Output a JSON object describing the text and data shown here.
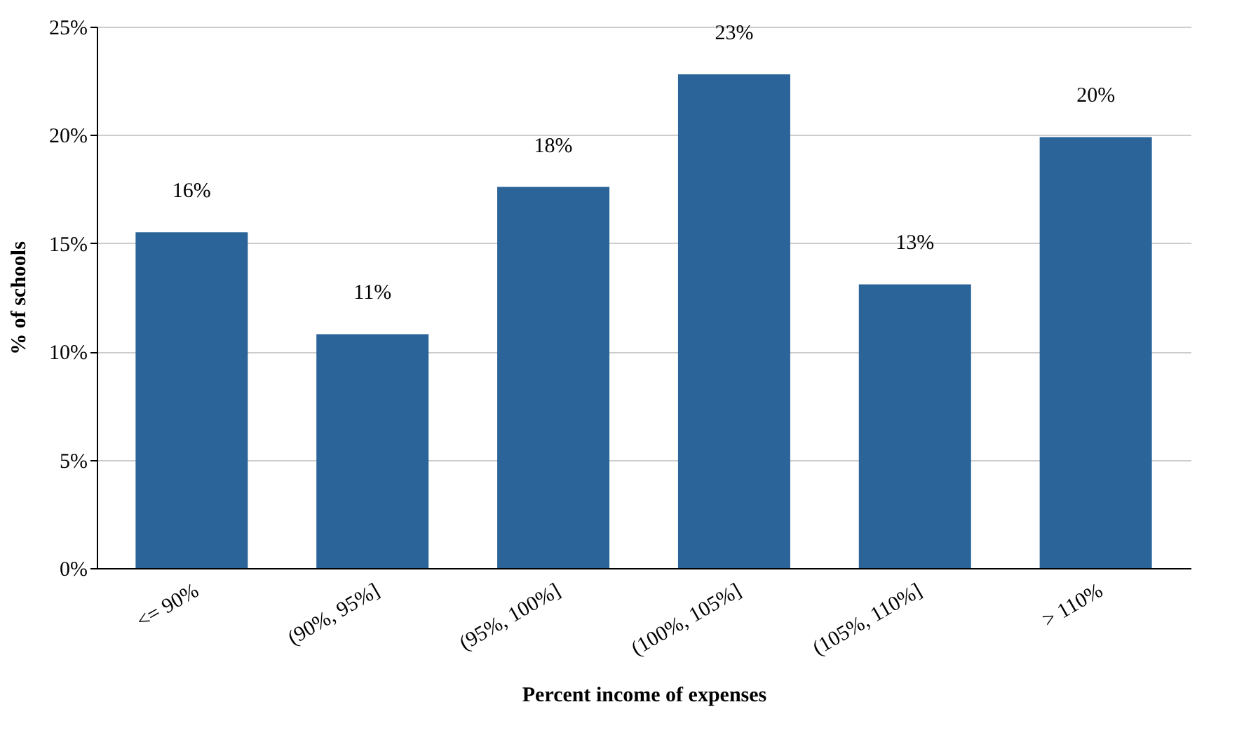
{
  "chart_data": {
    "type": "bar",
    "xlabel": "Percent income of expenses",
    "ylabel": "% of schools",
    "categories": [
      "<= 90%",
      "(90%, 95%]",
      "(95%, 100%]",
      "(100%, 105%]",
      "(105%, 110%]",
      "> 110%"
    ],
    "values": [
      15.5,
      10.8,
      17.6,
      22.8,
      13.1,
      19.9
    ],
    "value_labels": [
      "16%",
      "11%",
      "18%",
      "23%",
      "13%",
      "20%"
    ],
    "color": "#2b6499",
    "ylim": [
      0,
      25
    ],
    "yticks": [
      {
        "value": 0,
        "label": "0%"
      },
      {
        "value": 5,
        "label": "5%"
      },
      {
        "value": 10,
        "label": "10%"
      },
      {
        "value": 15,
        "label": "15%"
      },
      {
        "value": 20,
        "label": "20%"
      },
      {
        "value": 25,
        "label": "25%"
      }
    ],
    "grid": "y"
  }
}
